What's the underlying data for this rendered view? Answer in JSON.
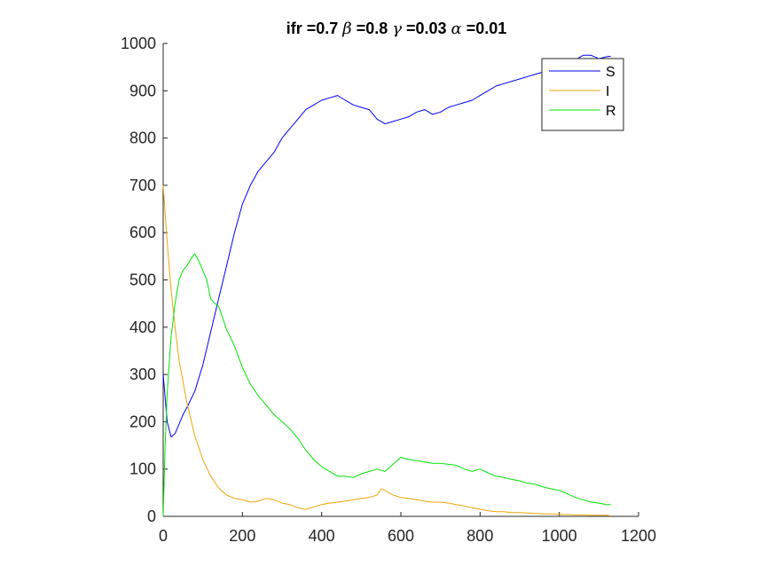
{
  "chart_data": {
    "type": "line",
    "title": {
      "parts": [
        {
          "text": "ifr =0.7 ",
          "greek": false
        },
        {
          "text": "β",
          "greek": true
        },
        {
          "text": " =0.8 ",
          "greek": false
        },
        {
          "text": "γ",
          "greek": true
        },
        {
          "text": " =0.03 ",
          "greek": false
        },
        {
          "text": "α",
          "greek": true
        },
        {
          "text": " =0.01",
          "greek": false
        }
      ]
    },
    "xlabel": "",
    "ylabel": "",
    "xlim": [
      0,
      1200
    ],
    "ylim": [
      0,
      1000
    ],
    "xticks": [
      0,
      200,
      400,
      600,
      800,
      1000,
      1200
    ],
    "yticks": [
      0,
      100,
      200,
      300,
      400,
      500,
      600,
      700,
      800,
      900,
      1000
    ],
    "grid": false,
    "legend_position": "top-right",
    "series": [
      {
        "name": "S",
        "color": "#0000ff",
        "x": [
          0,
          10,
          20,
          30,
          40,
          50,
          60,
          80,
          100,
          120,
          140,
          160,
          180,
          200,
          220,
          240,
          260,
          280,
          300,
          320,
          340,
          360,
          380,
          400,
          420,
          440,
          460,
          480,
          500,
          520,
          540,
          560,
          580,
          600,
          620,
          640,
          660,
          680,
          700,
          720,
          740,
          760,
          780,
          800,
          820,
          840,
          860,
          880,
          900,
          920,
          940,
          960,
          980,
          1000,
          1020,
          1040,
          1060,
          1080,
          1100,
          1120,
          1130
        ],
        "y": [
          300,
          200,
          168,
          175,
          195,
          215,
          230,
          265,
          320,
          390,
          460,
          530,
          600,
          660,
          700,
          730,
          750,
          770,
          800,
          820,
          840,
          860,
          870,
          880,
          885,
          890,
          880,
          870,
          865,
          860,
          840,
          830,
          835,
          840,
          845,
          855,
          860,
          850,
          855,
          865,
          870,
          875,
          880,
          890,
          900,
          910,
          915,
          920,
          925,
          930,
          935,
          940,
          950,
          955,
          960,
          965,
          975,
          975,
          968,
          972,
          973
        ]
      },
      {
        "name": "I",
        "color": "#f0a30a",
        "x": [
          0,
          10,
          20,
          30,
          40,
          60,
          80,
          100,
          120,
          140,
          160,
          180,
          200,
          220,
          240,
          260,
          280,
          300,
          320,
          340,
          360,
          380,
          400,
          420,
          440,
          460,
          480,
          500,
          520,
          540,
          550,
          560,
          580,
          600,
          620,
          640,
          660,
          680,
          700,
          720,
          740,
          760,
          780,
          800,
          820,
          840,
          860,
          880,
          900,
          920,
          940,
          960,
          980,
          1000,
          1020,
          1040,
          1060,
          1080,
          1100,
          1120,
          1130
        ],
        "y": [
          700,
          580,
          480,
          400,
          330,
          240,
          170,
          120,
          85,
          60,
          45,
          38,
          35,
          30,
          32,
          38,
          35,
          28,
          25,
          18,
          15,
          20,
          25,
          28,
          30,
          32,
          35,
          38,
          40,
          45,
          58,
          55,
          45,
          40,
          38,
          35,
          32,
          30,
          30,
          28,
          25,
          22,
          18,
          15,
          12,
          10,
          10,
          8,
          8,
          7,
          6,
          5,
          5,
          4,
          4,
          3,
          3,
          2,
          2,
          2,
          1
        ]
      },
      {
        "name": "R",
        "color": "#00e600",
        "x": [
          0,
          5,
          10,
          20,
          30,
          40,
          50,
          60,
          70,
          80,
          90,
          100,
          110,
          120,
          130,
          140,
          150,
          160,
          180,
          200,
          220,
          240,
          260,
          280,
          300,
          320,
          340,
          360,
          380,
          400,
          420,
          440,
          460,
          480,
          500,
          520,
          540,
          560,
          580,
          600,
          620,
          640,
          660,
          680,
          700,
          720,
          740,
          760,
          780,
          800,
          820,
          840,
          860,
          880,
          900,
          920,
          940,
          960,
          980,
          1000,
          1020,
          1040,
          1060,
          1080,
          1100,
          1120,
          1130
        ],
        "y": [
          0,
          150,
          260,
          380,
          450,
          500,
          520,
          530,
          545,
          555,
          540,
          520,
          500,
          460,
          450,
          445,
          420,
          395,
          360,
          315,
          280,
          255,
          235,
          215,
          200,
          185,
          165,
          140,
          120,
          105,
          95,
          85,
          85,
          82,
          90,
          95,
          100,
          95,
          110,
          125,
          120,
          118,
          115,
          112,
          112,
          110,
          108,
          100,
          95,
          100,
          92,
          85,
          82,
          78,
          75,
          70,
          68,
          62,
          58,
          55,
          48,
          40,
          35,
          30,
          28,
          25,
          25
        ]
      }
    ]
  }
}
